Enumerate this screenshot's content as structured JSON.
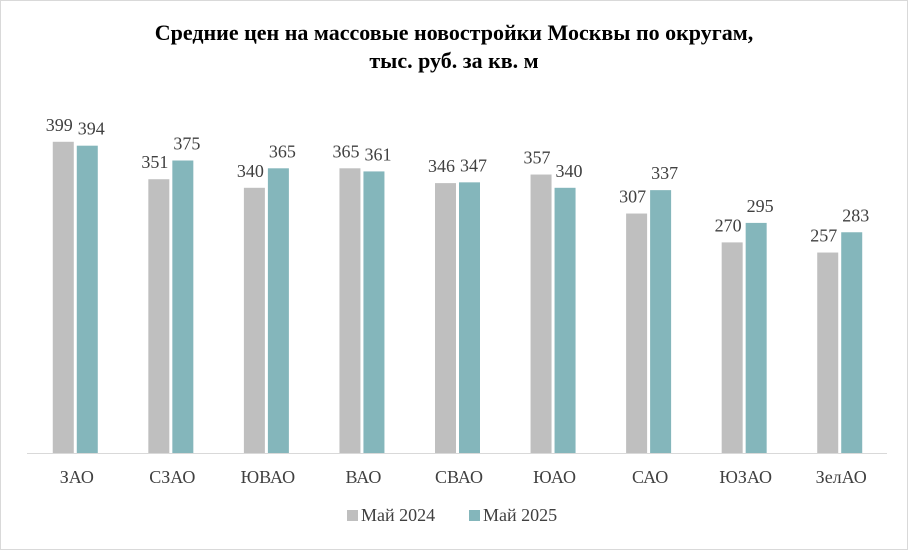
{
  "chart_data": {
    "type": "bar",
    "title_lines": [
      "Средние цен на массовые новостройки  Москвы по округам,",
      "тыс. руб. за кв. м"
    ],
    "categories": [
      "ЗАО",
      "СЗАО",
      "ЮВАО",
      "ВАО",
      "СВАО",
      "ЮАО",
      "САО",
      "ЮЗАО",
      "ЗелАО"
    ],
    "series": [
      {
        "name": "Май 2024",
        "color": "#bfbfbf",
        "values": [
          399,
          351,
          340,
          365,
          346,
          357,
          307,
          270,
          257
        ]
      },
      {
        "name": "Май 2025",
        "color": "#84b6bb",
        "values": [
          394,
          375,
          365,
          361,
          347,
          340,
          337,
          295,
          283
        ]
      }
    ],
    "ylim": [
      0,
      400
    ],
    "xlabel": "",
    "ylabel": "",
    "grid": false,
    "legend_position": "bottom",
    "axis_color": "#d9d9d9"
  }
}
